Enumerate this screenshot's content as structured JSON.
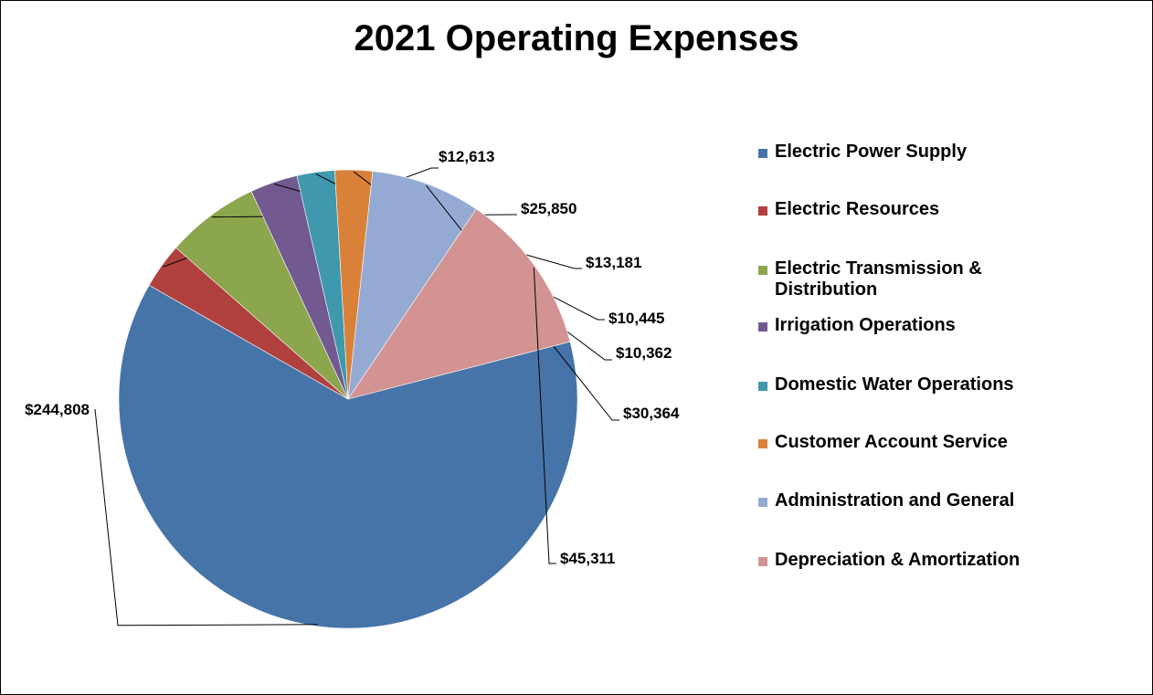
{
  "chart_data": {
    "type": "pie",
    "title": "2021 Operating Expenses",
    "slices": [
      {
        "label": "Electric Power Supply",
        "value": 244808,
        "value_label": "$244,808",
        "color": "#4674A8"
      },
      {
        "label": "Electric Resources",
        "value": 12613,
        "value_label": "$12,613",
        "color": "#B0413E"
      },
      {
        "label": "Electric Transmission & Distribution",
        "value": 25850,
        "value_label": "$25,850",
        "color": "#8BA64D"
      },
      {
        "label": "Irrigation Operations",
        "value": 13181,
        "value_label": "$13,181",
        "color": "#725A91"
      },
      {
        "label": "Domestic Water Operations",
        "value": 10445,
        "value_label": "$10,445",
        "color": "#3F98AC"
      },
      {
        "label": "Customer Account Service",
        "value": 10362,
        "value_label": "$10,362",
        "color": "#DA8139"
      },
      {
        "label": "Administration and General",
        "value": 30364,
        "value_label": "$30,364",
        "color": "#95AAD3"
      },
      {
        "label": "Depreciation & Amortization",
        "value": 45311,
        "value_label": "$45,311",
        "color": "#D39392"
      }
    ],
    "legend_position": "right"
  }
}
